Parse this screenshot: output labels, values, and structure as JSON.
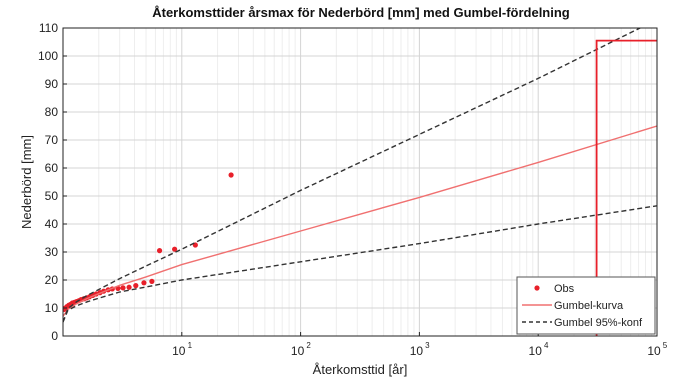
{
  "chart_data": {
    "type": "line",
    "title": "Återkomsttider årsmax för Nederbörd [mm] med Gumbel-fördelning",
    "xlabel": "Återkomsttid [år]",
    "ylabel": "Nederbörd [mm]",
    "xscale": "log",
    "xlim": [
      1,
      100000
    ],
    "ylim": [
      0,
      110
    ],
    "grid": true,
    "legend_position": "bottom-right",
    "xticks": [
      {
        "base": "10",
        "exp": "1",
        "value": 10
      },
      {
        "base": "10",
        "exp": "2",
        "value": 100
      },
      {
        "base": "10",
        "exp": "3",
        "value": 1000
      },
      {
        "base": "10",
        "exp": "4",
        "value": 10000
      },
      {
        "base": "10",
        "exp": "5",
        "value": 100000
      }
    ],
    "yticks": [
      "0",
      "10",
      "20",
      "30",
      "40",
      "50",
      "60",
      "70",
      "80",
      "90",
      "100",
      "110"
    ],
    "series": [
      {
        "name": "Obs",
        "kind": "scatter",
        "color": "#e8202a",
        "x": [
          1.02,
          1.05,
          1.08,
          1.12,
          1.16,
          1.2,
          1.25,
          1.3,
          1.36,
          1.42,
          1.5,
          1.58,
          1.67,
          1.78,
          1.9,
          2.05,
          2.2,
          2.4,
          2.6,
          2.9,
          3.2,
          3.6,
          4.1,
          4.8,
          5.6,
          6.5,
          8.7,
          13,
          26
        ],
        "y": [
          9.5,
          10,
          10.5,
          11,
          11.3,
          11.8,
          12,
          12.3,
          12.6,
          13,
          13.3,
          13.6,
          14,
          14.5,
          15,
          15.5,
          16,
          16.5,
          16.8,
          17,
          17.2,
          17.4,
          18,
          19,
          19.5,
          30.5,
          31,
          32.5,
          57.5
        ]
      },
      {
        "name": "Gumbel-kurva",
        "kind": "line",
        "color": "#f07070",
        "x": [
          1,
          1.1,
          1.3,
          1.6,
          2,
          3,
          5,
          10,
          100,
          1000,
          10000,
          100000
        ],
        "y": [
          7,
          9.5,
          11.5,
          13.4,
          15.1,
          18.1,
          21.1,
          25.5,
          37.5,
          49.5,
          62,
          75
        ]
      },
      {
        "name": "Gumbel 95%-konf",
        "kind": "dashed",
        "color": "#333333",
        "x": [
          1,
          1.1,
          1.3,
          1.6,
          2,
          3,
          5,
          10,
          100,
          1000,
          10000,
          100000
        ],
        "y": [
          5,
          9.8,
          12.2,
          14.5,
          16.6,
          20.5,
          25,
          31,
          52,
          72,
          92,
          113
        ]
      },
      {
        "name": "",
        "kind": "dashed",
        "color": "#333333",
        "x": [
          1,
          1.1,
          1.3,
          1.6,
          2,
          3,
          5,
          10,
          100,
          1000,
          10000,
          100000
        ],
        "y": [
          5,
          9.2,
          10.8,
          12.2,
          13.5,
          15.7,
          17.5,
          20,
          26.5,
          33,
          40,
          46.5
        ]
      },
      {
        "name": "",
        "kind": "step",
        "color": "#e8202a",
        "x": [
          31000,
          31000,
          100000
        ],
        "y": [
          0,
          105.5,
          105.5
        ]
      }
    ]
  }
}
